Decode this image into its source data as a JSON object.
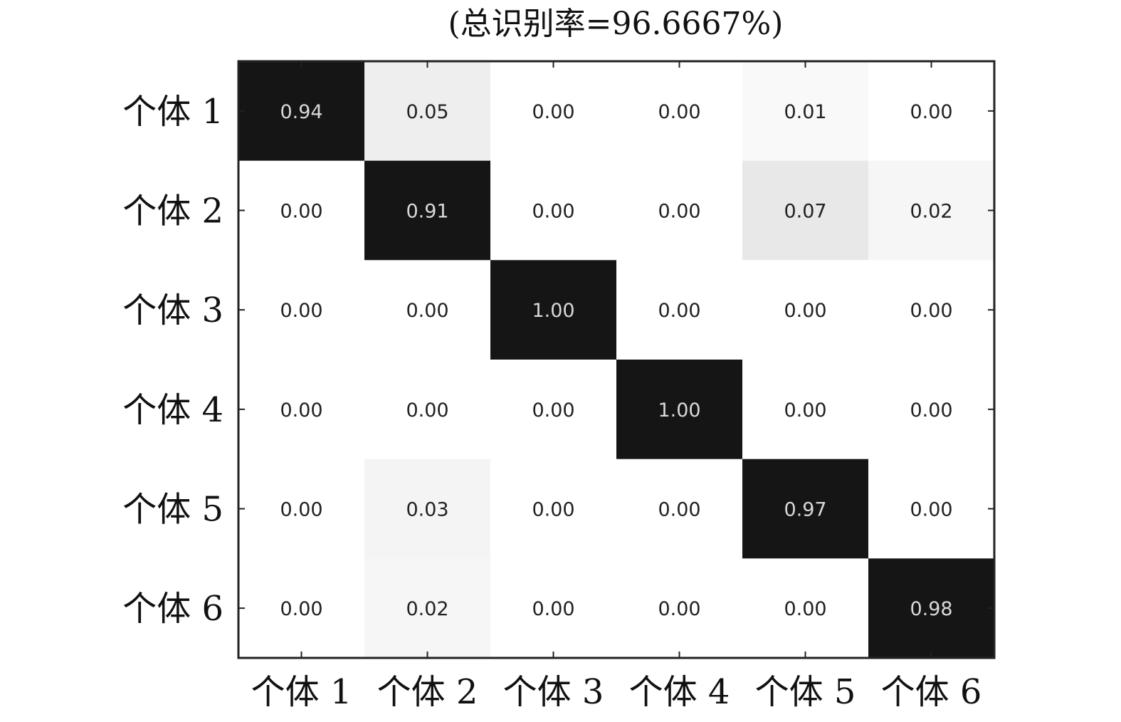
{
  "chart_data": {
    "type": "heatmap",
    "title": "(总识别率=96.6667%)",
    "xlabel": "",
    "ylabel": "",
    "x_categories": [
      "个体 1",
      "个体 2",
      "个体 3",
      "个体 4",
      "个体 5",
      "个体 6"
    ],
    "y_categories": [
      "个体 1",
      "个体 2",
      "个体 3",
      "个体 4",
      "个体 5",
      "个体 6"
    ],
    "values": [
      [
        0.94,
        0.05,
        0.0,
        0.0,
        0.01,
        0.0
      ],
      [
        0.0,
        0.91,
        0.0,
        0.0,
        0.07,
        0.02
      ],
      [
        0.0,
        0.0,
        1.0,
        0.0,
        0.0,
        0.0
      ],
      [
        0.0,
        0.0,
        0.0,
        1.0,
        0.0,
        0.0
      ],
      [
        0.0,
        0.03,
        0.0,
        0.0,
        0.97,
        0.0
      ],
      [
        0.0,
        0.02,
        0.0,
        0.0,
        0.0,
        0.98
      ]
    ],
    "value_labels": [
      [
        "0.94",
        "0.05",
        "0.00",
        "0.00",
        "0.01",
        "0.00"
      ],
      [
        "0.00",
        "0.91",
        "0.00",
        "0.00",
        "0.07",
        "0.02"
      ],
      [
        "0.00",
        "0.00",
        "1.00",
        "0.00",
        "0.00",
        "0.00"
      ],
      [
        "0.00",
        "0.00",
        "0.00",
        "1.00",
        "0.00",
        "0.00"
      ],
      [
        "0.00",
        "0.03",
        "0.00",
        "0.00",
        "0.97",
        "0.00"
      ],
      [
        "0.00",
        "0.02",
        "0.00",
        "0.00",
        "0.00",
        "0.98"
      ]
    ],
    "colormap": "grayscale, high values dark",
    "grid": false,
    "legend": "none"
  },
  "colors": {
    "background": "#ffffff",
    "frame": "#222222",
    "high_value_cell": "#151515",
    "text_on_dark": "#d8d8d8",
    "text_on_light": "#222222"
  }
}
